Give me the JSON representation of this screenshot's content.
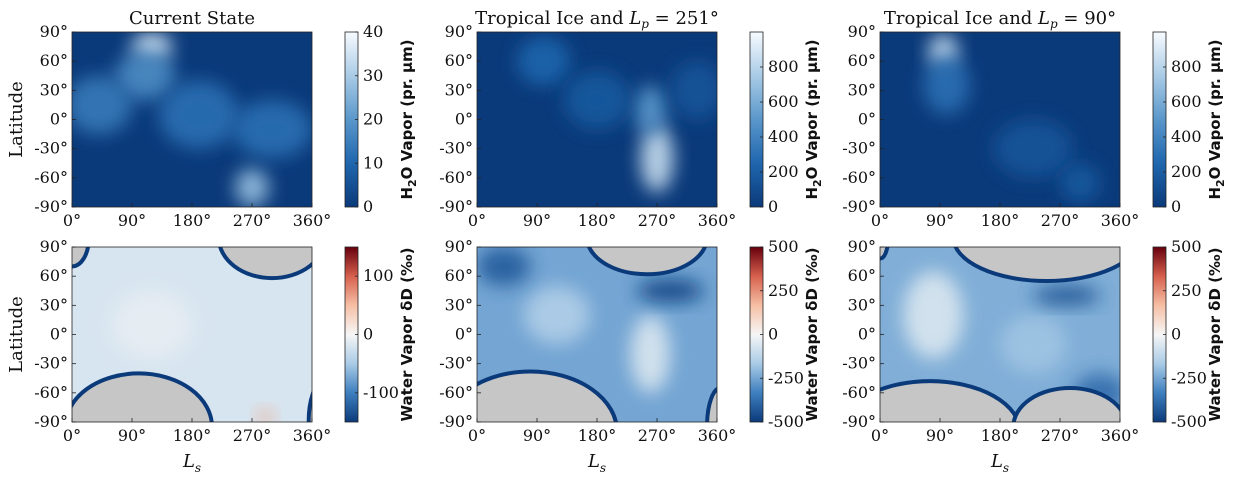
{
  "figure": {
    "row_labels": [
      "Latitude",
      "Latitude"
    ],
    "column_xlabel": "L_s"
  },
  "colors": {
    "vapor_scale": [
      "#0b3a7a",
      "#1f66ae",
      "#5a97cb",
      "#a9cbe6",
      "#f7fbff"
    ],
    "delta_scale": [
      "#0b3a7a",
      "#3e7fbf",
      "#a9cbe6",
      "#f6f6f6",
      "#f6bfa4",
      "#d6604d",
      "#67000d"
    ],
    "masked": "#c6c6c6"
  },
  "chart_data": [
    {
      "type": "heatmap",
      "title": "Current State",
      "xlabel": "",
      "ylabel": "Latitude",
      "x_ticks": [
        "0°",
        "90°",
        "180°",
        "270°",
        "360°"
      ],
      "y_ticks": [
        "90°",
        "60°",
        "30°",
        "0°",
        "-30°",
        "-60°",
        "-90°"
      ],
      "xlim": [
        0,
        360
      ],
      "ylim": [
        -90,
        90
      ],
      "colorbar": {
        "label": "H2O Vapor (pr. μm)",
        "ticks": [
          "40",
          "30",
          "20",
          "10",
          "0"
        ],
        "range": [
          0,
          40
        ],
        "scale": "vapor"
      },
      "blobs": [
        {
          "x": 120,
          "y": 75,
          "sx": 30,
          "sy": 15,
          "v": 35
        },
        {
          "x": 110,
          "y": 45,
          "sx": 45,
          "sy": 25,
          "v": 18
        },
        {
          "x": 270,
          "y": -70,
          "sx": 25,
          "sy": 20,
          "v": 28
        },
        {
          "x": 300,
          "y": -10,
          "sx": 60,
          "sy": 30,
          "v": 12
        },
        {
          "x": 40,
          "y": 15,
          "sx": 50,
          "sy": 30,
          "v": 14
        },
        {
          "x": 190,
          "y": 5,
          "sx": 60,
          "sy": 35,
          "v": 12
        }
      ],
      "base": 0
    },
    {
      "type": "heatmap",
      "title": "Tropical Ice and L_p = 251°",
      "xlabel": "",
      "ylabel": "",
      "x_ticks": [
        "0°",
        "90°",
        "180°",
        "270°",
        "360°"
      ],
      "y_ticks": [
        "90°",
        "60°",
        "30°",
        "0°",
        "-30°",
        "-60°",
        "-90°"
      ],
      "xlim": [
        0,
        360
      ],
      "ylim": [
        -90,
        90
      ],
      "colorbar": {
        "label": "H2O Vapor (pr. μm)",
        "ticks": [
          "800",
          "600",
          "400",
          "200",
          "0"
        ],
        "range": [
          0,
          1000
        ],
        "scale": "vapor"
      },
      "blobs": [
        {
          "x": 270,
          "y": -40,
          "sx": 25,
          "sy": 35,
          "v": 850
        },
        {
          "x": 260,
          "y": 10,
          "sx": 25,
          "sy": 25,
          "v": 500
        },
        {
          "x": 100,
          "y": 60,
          "sx": 40,
          "sy": 25,
          "v": 250
        },
        {
          "x": 180,
          "y": 20,
          "sx": 50,
          "sy": 30,
          "v": 180
        },
        {
          "x": 330,
          "y": 30,
          "sx": 40,
          "sy": 30,
          "v": 150
        }
      ],
      "base": 0
    },
    {
      "type": "heatmap",
      "title": "Tropical Ice and L_p = 90°",
      "xlabel": "",
      "ylabel": "",
      "x_ticks": [
        "0°",
        "90°",
        "180°",
        "270°",
        "360°"
      ],
      "y_ticks": [
        "90°",
        "60°",
        "30°",
        "0°",
        "-30°",
        "-60°",
        "-90°"
      ],
      "xlim": [
        0,
        360
      ],
      "ylim": [
        -90,
        90
      ],
      "colorbar": {
        "label": "H2O Vapor (pr. μm)",
        "ticks": [
          "800",
          "600",
          "400",
          "200",
          "0"
        ],
        "range": [
          0,
          1000
        ],
        "scale": "vapor"
      },
      "blobs": [
        {
          "x": 95,
          "y": 70,
          "sx": 22,
          "sy": 18,
          "v": 850
        },
        {
          "x": 100,
          "y": 35,
          "sx": 35,
          "sy": 30,
          "v": 300
        },
        {
          "x": 230,
          "y": -30,
          "sx": 60,
          "sy": 30,
          "v": 150
        },
        {
          "x": 300,
          "y": -65,
          "sx": 30,
          "sy": 20,
          "v": 180
        }
      ],
      "base": 0
    },
    {
      "type": "heatmap",
      "title": "",
      "xlabel": "L_s",
      "ylabel": "Latitude",
      "x_ticks": [
        "0°",
        "90°",
        "180°",
        "270°",
        "360°"
      ],
      "y_ticks": [
        "90°",
        "60°",
        "30°",
        "0°",
        "-30°",
        "-60°",
        "-90°"
      ],
      "xlim": [
        0,
        360
      ],
      "ylim": [
        -90,
        90
      ],
      "colorbar": {
        "label": "Water Vapor δD (‰)",
        "ticks": [
          "100",
          "0",
          "-100"
        ],
        "range": [
          -150,
          150
        ],
        "scale": "delta"
      },
      "base": -20,
      "blobs": [
        {
          "x": 290,
          "y": -85,
          "sx": 12,
          "sy": 8,
          "v": 60
        },
        {
          "x": 120,
          "y": 10,
          "sx": 60,
          "sy": 35,
          "v": -10
        }
      ],
      "masks": [
        {
          "cx": 100,
          "cy": -95,
          "rx": 110,
          "ry": 55
        },
        {
          "cx": 0,
          "cy": 98,
          "rx": 25,
          "ry": 28
        },
        {
          "cx": 300,
          "cy": 100,
          "rx": 80,
          "ry": 42
        },
        {
          "cx": 375,
          "cy": -90,
          "rx": 20,
          "ry": 40
        }
      ]
    },
    {
      "type": "heatmap",
      "title": "",
      "xlabel": "L_s",
      "ylabel": "",
      "x_ticks": [
        "0°",
        "90°",
        "180°",
        "270°",
        "360°"
      ],
      "y_ticks": [
        "90°",
        "60°",
        "30°",
        "0°",
        "-30°",
        "-60°",
        "-90°"
      ],
      "xlim": [
        0,
        360
      ],
      "ylim": [
        -90,
        90
      ],
      "colorbar": {
        "label": "Water Vapor δD (‰)",
        "ticks": [
          "500",
          "250",
          "0",
          "-250",
          "-500"
        ],
        "range": [
          -500,
          500
        ],
        "scale": "delta"
      },
      "base": -250,
      "blobs": [
        {
          "x": 260,
          "y": -20,
          "sx": 30,
          "sy": 40,
          "v": -60
        },
        {
          "x": 120,
          "y": 20,
          "sx": 50,
          "sy": 30,
          "v": -150
        },
        {
          "x": 40,
          "y": 70,
          "sx": 40,
          "sy": 20,
          "v": -420
        },
        {
          "x": 290,
          "y": 45,
          "sx": 50,
          "sy": 12,
          "v": -480
        }
      ],
      "masks": [
        {
          "cx": 80,
          "cy": -100,
          "rx": 130,
          "ry": 62
        },
        {
          "cx": 255,
          "cy": 100,
          "rx": 90,
          "ry": 38
        },
        {
          "cx": 365,
          "cy": -95,
          "rx": 20,
          "ry": 40
        }
      ]
    },
    {
      "type": "heatmap",
      "title": "",
      "xlabel": "L_s",
      "ylabel": "",
      "x_ticks": [
        "0°",
        "90°",
        "180°",
        "270°",
        "360°"
      ],
      "y_ticks": [
        "90°",
        "60°",
        "30°",
        "0°",
        "-30°",
        "-60°",
        "-90°"
      ],
      "xlim": [
        0,
        360
      ],
      "ylim": [
        -90,
        90
      ],
      "colorbar": {
        "label": "Water Vapor δD (‰)",
        "ticks": [
          "500",
          "250",
          "0",
          "-250",
          "-500"
        ],
        "range": [
          -500,
          500
        ],
        "scale": "delta"
      },
      "base": -230,
      "blobs": [
        {
          "x": 80,
          "y": 20,
          "sx": 45,
          "sy": 45,
          "v": -60
        },
        {
          "x": 230,
          "y": -10,
          "sx": 50,
          "sy": 30,
          "v": -180
        },
        {
          "x": 280,
          "y": 40,
          "sx": 50,
          "sy": 10,
          "v": -440
        },
        {
          "x": 330,
          "y": -60,
          "sx": 40,
          "sy": 20,
          "v": -380
        }
      ],
      "masks": [
        {
          "cx": 75,
          "cy": -100,
          "rx": 135,
          "ry": 52
        },
        {
          "cx": 250,
          "cy": 100,
          "rx": 140,
          "ry": 45
        },
        {
          "cx": 0,
          "cy": 98,
          "rx": 12,
          "ry": 20
        },
        {
          "cx": 285,
          "cy": -95,
          "rx": 85,
          "ry": 40
        }
      ]
    }
  ]
}
